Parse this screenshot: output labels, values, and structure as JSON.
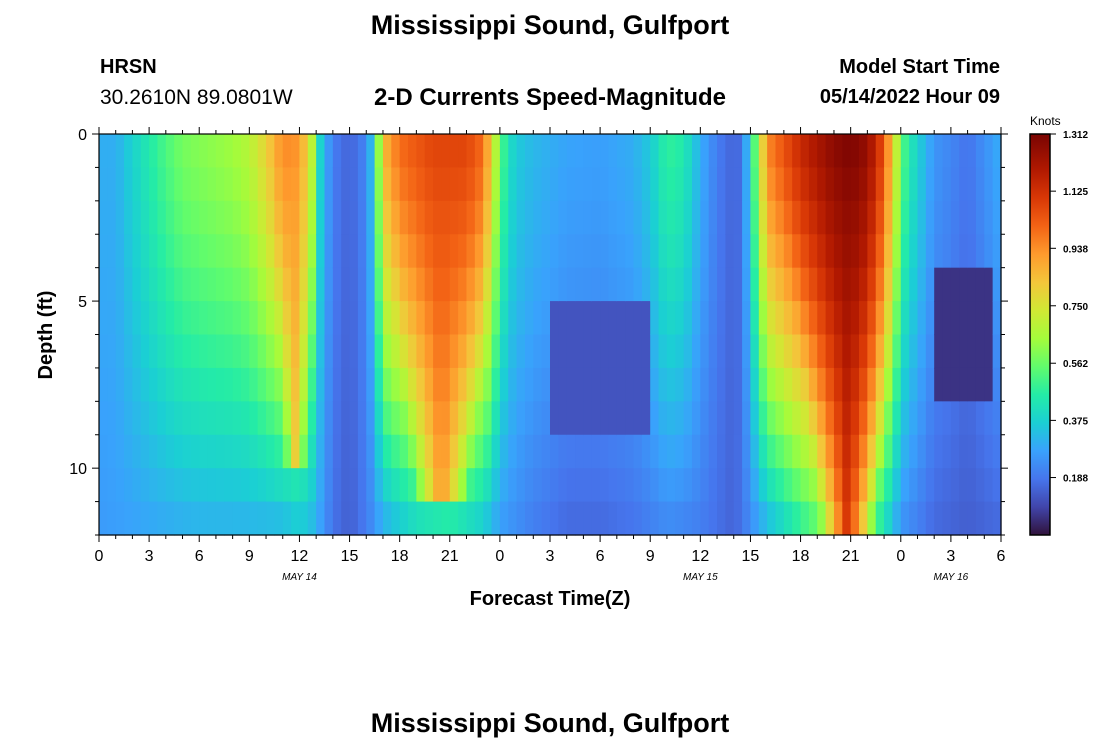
{
  "header": {
    "title": "Mississippi Sound, Gulfport",
    "station_code": "HRSN",
    "station_coords": "30.2610N  89.0801W",
    "subtitle": "2-D Currents Speed-Magnitude",
    "model_start_label": "Model Start Time",
    "model_start_value": "05/14/2022 Hour 09"
  },
  "footer": {
    "title": "Mississippi Sound, Gulfport"
  },
  "chart_data": {
    "type": "heatmap",
    "title": "2-D Currents Speed-Magnitude",
    "xlabel": "Forecast Time(Z)",
    "ylabel": "Depth (ft)",
    "x_range_hours": [
      0,
      54
    ],
    "y_range_ft": [
      0,
      12
    ],
    "x_ticks": [
      {
        "h": 0,
        "label": "0"
      },
      {
        "h": 3,
        "label": "3"
      },
      {
        "h": 6,
        "label": "6"
      },
      {
        "h": 9,
        "label": "9"
      },
      {
        "h": 12,
        "label": "12"
      },
      {
        "h": 15,
        "label": "15"
      },
      {
        "h": 18,
        "label": "18"
      },
      {
        "h": 21,
        "label": "21"
      },
      {
        "h": 24,
        "label": "0"
      },
      {
        "h": 27,
        "label": "3"
      },
      {
        "h": 30,
        "label": "6"
      },
      {
        "h": 33,
        "label": "9"
      },
      {
        "h": 36,
        "label": "12"
      },
      {
        "h": 39,
        "label": "15"
      },
      {
        "h": 42,
        "label": "18"
      },
      {
        "h": 45,
        "label": "21"
      },
      {
        "h": 48,
        "label": "0"
      },
      {
        "h": 51,
        "label": "3"
      },
      {
        "h": 54,
        "label": "6"
      }
    ],
    "date_labels": [
      {
        "h": 12,
        "label": "MAY 14"
      },
      {
        "h": 36,
        "label": "MAY 15"
      },
      {
        "h": 51,
        "label": "MAY 16"
      }
    ],
    "y_ticks": [
      {
        "v": 0,
        "label": "0"
      },
      {
        "v": 5,
        "label": "5"
      },
      {
        "v": 10,
        "label": "10"
      }
    ],
    "colorbar": {
      "title": "Knots",
      "min": 0.0,
      "max": 1.312,
      "tick_values": [
        1.312,
        1.125,
        0.938,
        0.75,
        0.562,
        0.375,
        0.188
      ],
      "tick_labels": [
        "1.312",
        "1.125",
        "0.938",
        "0.750",
        "0.562",
        "0.375",
        "0.188"
      ]
    },
    "depth_rows_ft": 12,
    "ebb_flood_peaks": [
      {
        "center_h": 11.5,
        "peak_knots": 0.95,
        "note": "narrow maximum, surface"
      },
      {
        "center_h": 21.0,
        "peak_knots": 1.1,
        "note": "broad surface maximum"
      },
      {
        "center_h": 45.0,
        "peak_knots": 1.31,
        "note": "strongest surface maximum"
      }
    ],
    "slack_minima_h": [
      15,
      29.5,
      38,
      52.5
    ]
  }
}
